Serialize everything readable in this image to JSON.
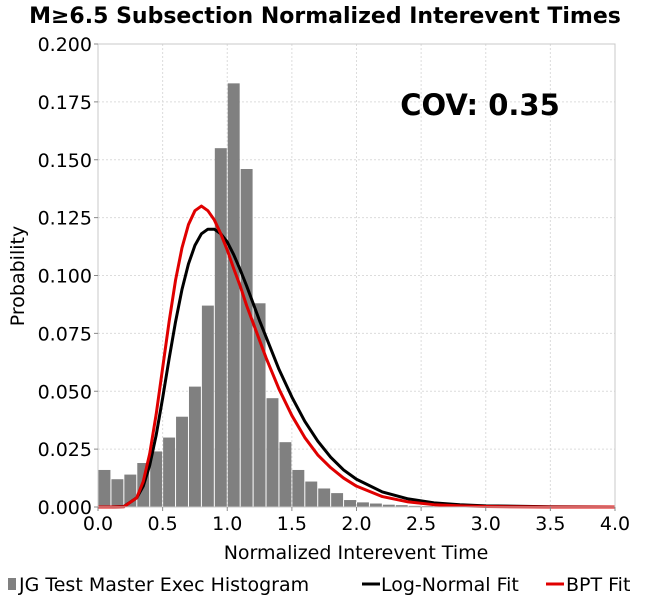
{
  "chart_data": {
    "type": "bar",
    "title": "M≥6.5 Subsection Normalized Interevent Times",
    "xlabel": "Normalized Interevent Time",
    "ylabel": "Probability",
    "annotation": "COV: 0.35",
    "xlim": [
      0,
      4.0
    ],
    "ylim": [
      0,
      0.2
    ],
    "xticks": [
      "0.0",
      "0.5",
      "1.0",
      "1.5",
      "2.0",
      "2.5",
      "3.0",
      "3.5",
      "4.0"
    ],
    "yticks": [
      "0.000",
      "0.025",
      "0.050",
      "0.075",
      "0.100",
      "0.125",
      "0.150",
      "0.175",
      "0.200"
    ],
    "grid": true,
    "legend_position": "bottom",
    "histogram": {
      "name": "JG Test Master Exec Histogram",
      "color": "#808080",
      "bin_width": 0.1,
      "bin_starts": [
        0.0,
        0.1,
        0.2,
        0.3,
        0.4,
        0.5,
        0.6,
        0.7,
        0.8,
        0.9,
        1.0,
        1.1,
        1.2,
        1.3,
        1.4,
        1.5,
        1.6,
        1.7,
        1.8,
        1.9,
        2.0,
        2.1,
        2.2,
        2.3,
        2.4,
        2.5,
        2.6,
        2.7,
        2.8,
        2.9,
        3.0,
        3.1,
        3.2,
        3.3,
        3.4,
        3.5,
        3.6,
        3.7,
        3.8,
        3.9
      ],
      "values": [
        0.016,
        0.012,
        0.014,
        0.019,
        0.024,
        0.03,
        0.039,
        0.052,
        0.087,
        0.155,
        0.183,
        0.146,
        0.088,
        0.047,
        0.028,
        0.016,
        0.011,
        0.008,
        0.006,
        0.003,
        0.002,
        0.0015,
        0.001,
        0.0008,
        0.0005,
        0.0004,
        0.0003,
        0.0002,
        0.0002,
        0.0001,
        0.0001,
        0.0001,
        0.0001,
        0.0001,
        0.0,
        0.0,
        0.0,
        0.0,
        0.0,
        0.0
      ]
    },
    "series": [
      {
        "name": "Log-Normal Fit",
        "color": "#000000",
        "x": [
          0.0,
          0.1,
          0.2,
          0.3,
          0.35,
          0.4,
          0.45,
          0.5,
          0.55,
          0.6,
          0.65,
          0.7,
          0.75,
          0.8,
          0.85,
          0.9,
          0.95,
          1.0,
          1.05,
          1.1,
          1.15,
          1.2,
          1.25,
          1.3,
          1.4,
          1.5,
          1.6,
          1.7,
          1.8,
          1.9,
          2.0,
          2.2,
          2.4,
          2.6,
          2.8,
          3.0,
          3.5,
          4.0
        ],
        "values": [
          0.0,
          0.0,
          0.0002,
          0.004,
          0.009,
          0.018,
          0.031,
          0.047,
          0.064,
          0.08,
          0.094,
          0.105,
          0.113,
          0.118,
          0.12,
          0.12,
          0.118,
          0.1145,
          0.109,
          0.1025,
          0.0955,
          0.088,
          0.0805,
          0.0735,
          0.0595,
          0.0475,
          0.037,
          0.0285,
          0.0215,
          0.016,
          0.012,
          0.0065,
          0.0035,
          0.0018,
          0.001,
          0.0005,
          0.0001,
          0.0
        ]
      },
      {
        "name": "BPT Fit",
        "color": "#e00000",
        "x": [
          0.0,
          0.1,
          0.2,
          0.3,
          0.35,
          0.4,
          0.45,
          0.5,
          0.55,
          0.6,
          0.65,
          0.7,
          0.75,
          0.8,
          0.85,
          0.9,
          0.95,
          1.0,
          1.05,
          1.1,
          1.15,
          1.2,
          1.25,
          1.3,
          1.4,
          1.5,
          1.6,
          1.7,
          1.8,
          1.9,
          2.0,
          2.2,
          2.4,
          2.6,
          2.8,
          3.0,
          3.5,
          4.0
        ],
        "values": [
          0.0,
          0.0,
          0.0001,
          0.004,
          0.011,
          0.023,
          0.04,
          0.06,
          0.08,
          0.098,
          0.112,
          0.122,
          0.128,
          0.13,
          0.128,
          0.124,
          0.118,
          0.111,
          0.103,
          0.0955,
          0.087,
          0.0795,
          0.072,
          0.0645,
          0.051,
          0.0395,
          0.03,
          0.0225,
          0.017,
          0.0125,
          0.009,
          0.0045,
          0.0022,
          0.001,
          0.0005,
          0.0002,
          0.0,
          0.0
        ]
      }
    ]
  }
}
